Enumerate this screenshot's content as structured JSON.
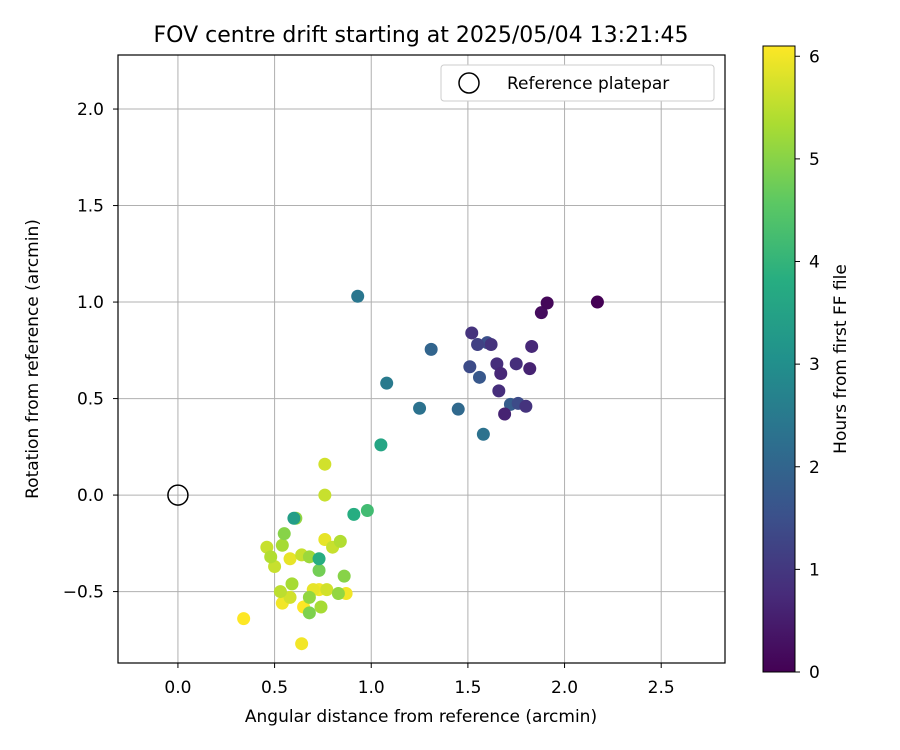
{
  "chart_data": {
    "type": "scatter",
    "title": "FOV centre drift starting at 2025/05/04 13:21:45",
    "xlabel": "Angular distance from reference (arcmin)",
    "ylabel": "Rotation from reference (arcmin)",
    "xlim": [
      -0.31,
      2.83
    ],
    "ylim": [
      -0.87,
      2.28
    ],
    "xticks": [
      0.0,
      0.5,
      1.0,
      1.5,
      2.0,
      2.5
    ],
    "xtick_labels": [
      "0.0",
      "0.5",
      "1.0",
      "1.5",
      "2.0",
      "2.5"
    ],
    "yticks": [
      -0.5,
      0.0,
      0.5,
      1.0,
      1.5,
      2.0
    ],
    "ytick_labels": [
      "−0.5",
      "0.0",
      "0.5",
      "1.0",
      "1.5",
      "2.0"
    ],
    "grid": true,
    "legend": {
      "position": "top-right",
      "entries": [
        "Reference platepar"
      ]
    },
    "colorbar": {
      "label": "Hours from first FF file",
      "colormap": "viridis",
      "range": [
        0,
        6.1
      ],
      "ticks": [
        0,
        1,
        2,
        3,
        4,
        5,
        6
      ],
      "tick_labels": [
        "0",
        "1",
        "2",
        "3",
        "4",
        "5",
        "6"
      ]
    },
    "reference": {
      "x": 0.0,
      "y": 0.0
    },
    "series": [
      {
        "points": [
          {
            "x": 2.17,
            "y": 1.0,
            "c": 0.0
          },
          {
            "x": 1.91,
            "y": 0.995,
            "c": 0.1
          },
          {
            "x": 1.88,
            "y": 0.945,
            "c": 0.2
          },
          {
            "x": 1.83,
            "y": 0.77,
            "c": 0.7
          },
          {
            "x": 1.82,
            "y": 0.655,
            "c": 0.6
          },
          {
            "x": 1.52,
            "y": 0.84,
            "c": 0.9
          },
          {
            "x": 1.55,
            "y": 0.78,
            "c": 1.2
          },
          {
            "x": 1.6,
            "y": 0.79,
            "c": 1.5
          },
          {
            "x": 1.62,
            "y": 0.78,
            "c": 0.9
          },
          {
            "x": 1.65,
            "y": 0.68,
            "c": 0.8
          },
          {
            "x": 1.67,
            "y": 0.63,
            "c": 0.7
          },
          {
            "x": 1.75,
            "y": 0.68,
            "c": 0.8
          },
          {
            "x": 1.66,
            "y": 0.54,
            "c": 0.8
          },
          {
            "x": 1.69,
            "y": 0.42,
            "c": 0.6
          },
          {
            "x": 1.72,
            "y": 0.47,
            "c": 1.8
          },
          {
            "x": 1.76,
            "y": 0.475,
            "c": 1.4
          },
          {
            "x": 1.8,
            "y": 0.46,
            "c": 0.9
          },
          {
            "x": 1.51,
            "y": 0.665,
            "c": 1.4
          },
          {
            "x": 1.56,
            "y": 0.61,
            "c": 1.7
          },
          {
            "x": 1.31,
            "y": 0.755,
            "c": 2.0
          },
          {
            "x": 1.25,
            "y": 0.45,
            "c": 2.3
          },
          {
            "x": 1.45,
            "y": 0.445,
            "c": 2.1
          },
          {
            "x": 1.58,
            "y": 0.315,
            "c": 2.3
          },
          {
            "x": 0.93,
            "y": 1.03,
            "c": 2.4
          },
          {
            "x": 1.08,
            "y": 0.58,
            "c": 2.5
          },
          {
            "x": 1.05,
            "y": 0.26,
            "c": 3.6
          },
          {
            "x": 0.76,
            "y": 0.16,
            "c": 5.7
          },
          {
            "x": 0.76,
            "y": 0.0,
            "c": 5.6
          },
          {
            "x": 0.91,
            "y": -0.1,
            "c": 3.8
          },
          {
            "x": 0.98,
            "y": -0.08,
            "c": 4.2
          },
          {
            "x": 0.6,
            "y": -0.12,
            "c": 3.4
          },
          {
            "x": 0.61,
            "y": -0.12,
            "c": 5.1
          },
          {
            "x": 0.55,
            "y": -0.2,
            "c": 5.0
          },
          {
            "x": 0.46,
            "y": -0.27,
            "c": 5.6
          },
          {
            "x": 0.54,
            "y": -0.26,
            "c": 5.3
          },
          {
            "x": 0.48,
            "y": -0.32,
            "c": 5.4
          },
          {
            "x": 0.5,
            "y": -0.37,
            "c": 5.6
          },
          {
            "x": 0.58,
            "y": -0.33,
            "c": 5.9
          },
          {
            "x": 0.64,
            "y": -0.31,
            "c": 5.6
          },
          {
            "x": 0.68,
            "y": -0.32,
            "c": 5.2
          },
          {
            "x": 0.73,
            "y": -0.33,
            "c": 3.8
          },
          {
            "x": 0.73,
            "y": -0.39,
            "c": 4.8
          },
          {
            "x": 0.76,
            "y": -0.23,
            "c": 5.9
          },
          {
            "x": 0.8,
            "y": -0.27,
            "c": 5.6
          },
          {
            "x": 0.84,
            "y": -0.24,
            "c": 5.4
          },
          {
            "x": 0.86,
            "y": -0.42,
            "c": 5.0
          },
          {
            "x": 0.59,
            "y": -0.46,
            "c": 5.3
          },
          {
            "x": 0.53,
            "y": -0.5,
            "c": 5.5
          },
          {
            "x": 0.54,
            "y": -0.56,
            "c": 6.0
          },
          {
            "x": 0.58,
            "y": -0.53,
            "c": 5.7
          },
          {
            "x": 0.65,
            "y": -0.58,
            "c": 6.1
          },
          {
            "x": 0.68,
            "y": -0.53,
            "c": 5.1
          },
          {
            "x": 0.7,
            "y": -0.49,
            "c": 5.9
          },
          {
            "x": 0.73,
            "y": -0.49,
            "c": 6.0
          },
          {
            "x": 0.77,
            "y": -0.49,
            "c": 5.7
          },
          {
            "x": 0.74,
            "y": -0.58,
            "c": 5.3
          },
          {
            "x": 0.68,
            "y": -0.61,
            "c": 4.9
          },
          {
            "x": 0.83,
            "y": -0.51,
            "c": 5.1
          },
          {
            "x": 0.87,
            "y": -0.51,
            "c": 6.0
          },
          {
            "x": 0.34,
            "y": -0.64,
            "c": 6.1
          },
          {
            "x": 0.64,
            "y": -0.77,
            "c": 6.0
          }
        ]
      }
    ]
  }
}
